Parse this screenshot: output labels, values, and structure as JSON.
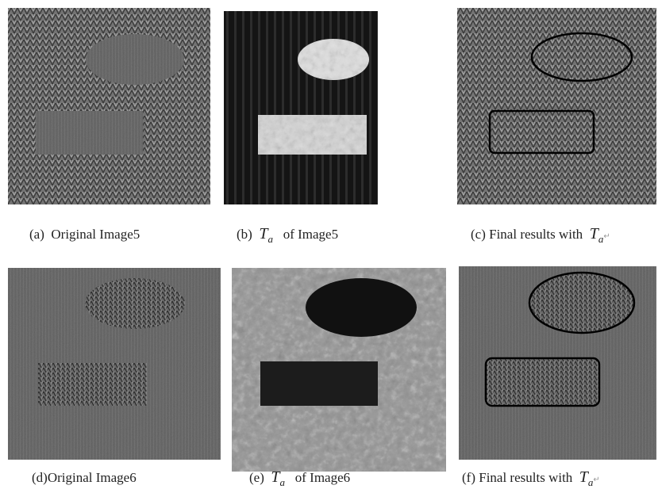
{
  "panels": [
    {
      "caption": {
        "label": "(a)",
        "text": "Original Image5"
      }
    },
    {
      "caption": {
        "label": "(b)",
        "symbol": "T",
        "subscript": "a",
        "text": "of Image5"
      }
    },
    {
      "caption": {
        "label": "(c)",
        "text": "Final results with",
        "symbol": "T",
        "subscript": "a",
        "mark": "↵"
      }
    },
    {
      "caption": {
        "label": "(d)",
        "text": "Original Image6"
      }
    },
    {
      "caption": {
        "label": "(e)",
        "symbol": "T",
        "subscript": "a",
        "text": "of Image6"
      }
    },
    {
      "caption": {
        "label": "(f)",
        "text": "Final results with",
        "symbol": "T",
        "subscript": "a",
        "mark": "↵"
      }
    }
  ]
}
